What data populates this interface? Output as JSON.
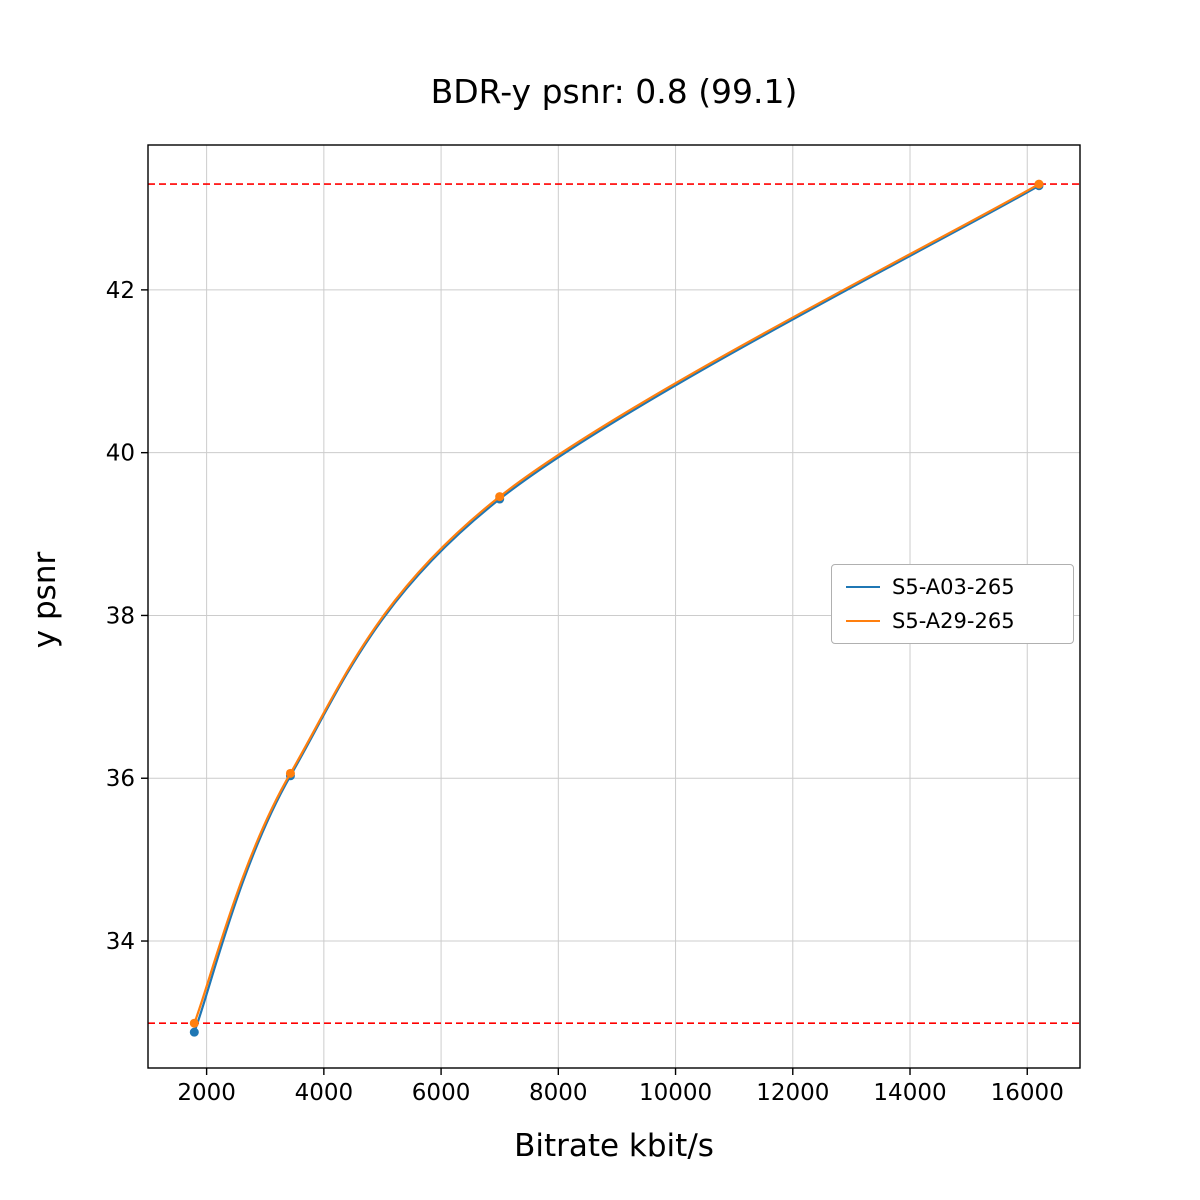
{
  "chart_data": {
    "type": "line",
    "title": "BDR-y psnr: 0.8 (99.1)",
    "xlabel": "Bitrate kbit/s",
    "ylabel": "y psnr",
    "xlim": [
      1000,
      16900
    ],
    "ylim": [
      32.44,
      43.78
    ],
    "x_ticks": [
      2000,
      4000,
      6000,
      8000,
      10000,
      12000,
      14000,
      16000
    ],
    "y_ticks": [
      34,
      36,
      38,
      40,
      42
    ],
    "grid": true,
    "legend_position": "center right",
    "series": [
      {
        "name": "S5-A03-265",
        "color": "#1f77b4",
        "x": [
          1790,
          3430,
          7000,
          16200
        ],
        "y": [
          32.88,
          36.03,
          39.43,
          43.28
        ]
      },
      {
        "name": "S5-A29-265",
        "color": "#ff7f0e",
        "x": [
          1790,
          3430,
          7000,
          16200
        ],
        "y": [
          32.99,
          36.06,
          39.46,
          43.3
        ]
      }
    ],
    "hlines": {
      "values": [
        43.3,
        32.99
      ],
      "color": "#ff0000",
      "style": "dashed"
    }
  },
  "colors": {
    "grid": "#cccccc",
    "axis": "#000000",
    "background": "#ffffff"
  }
}
